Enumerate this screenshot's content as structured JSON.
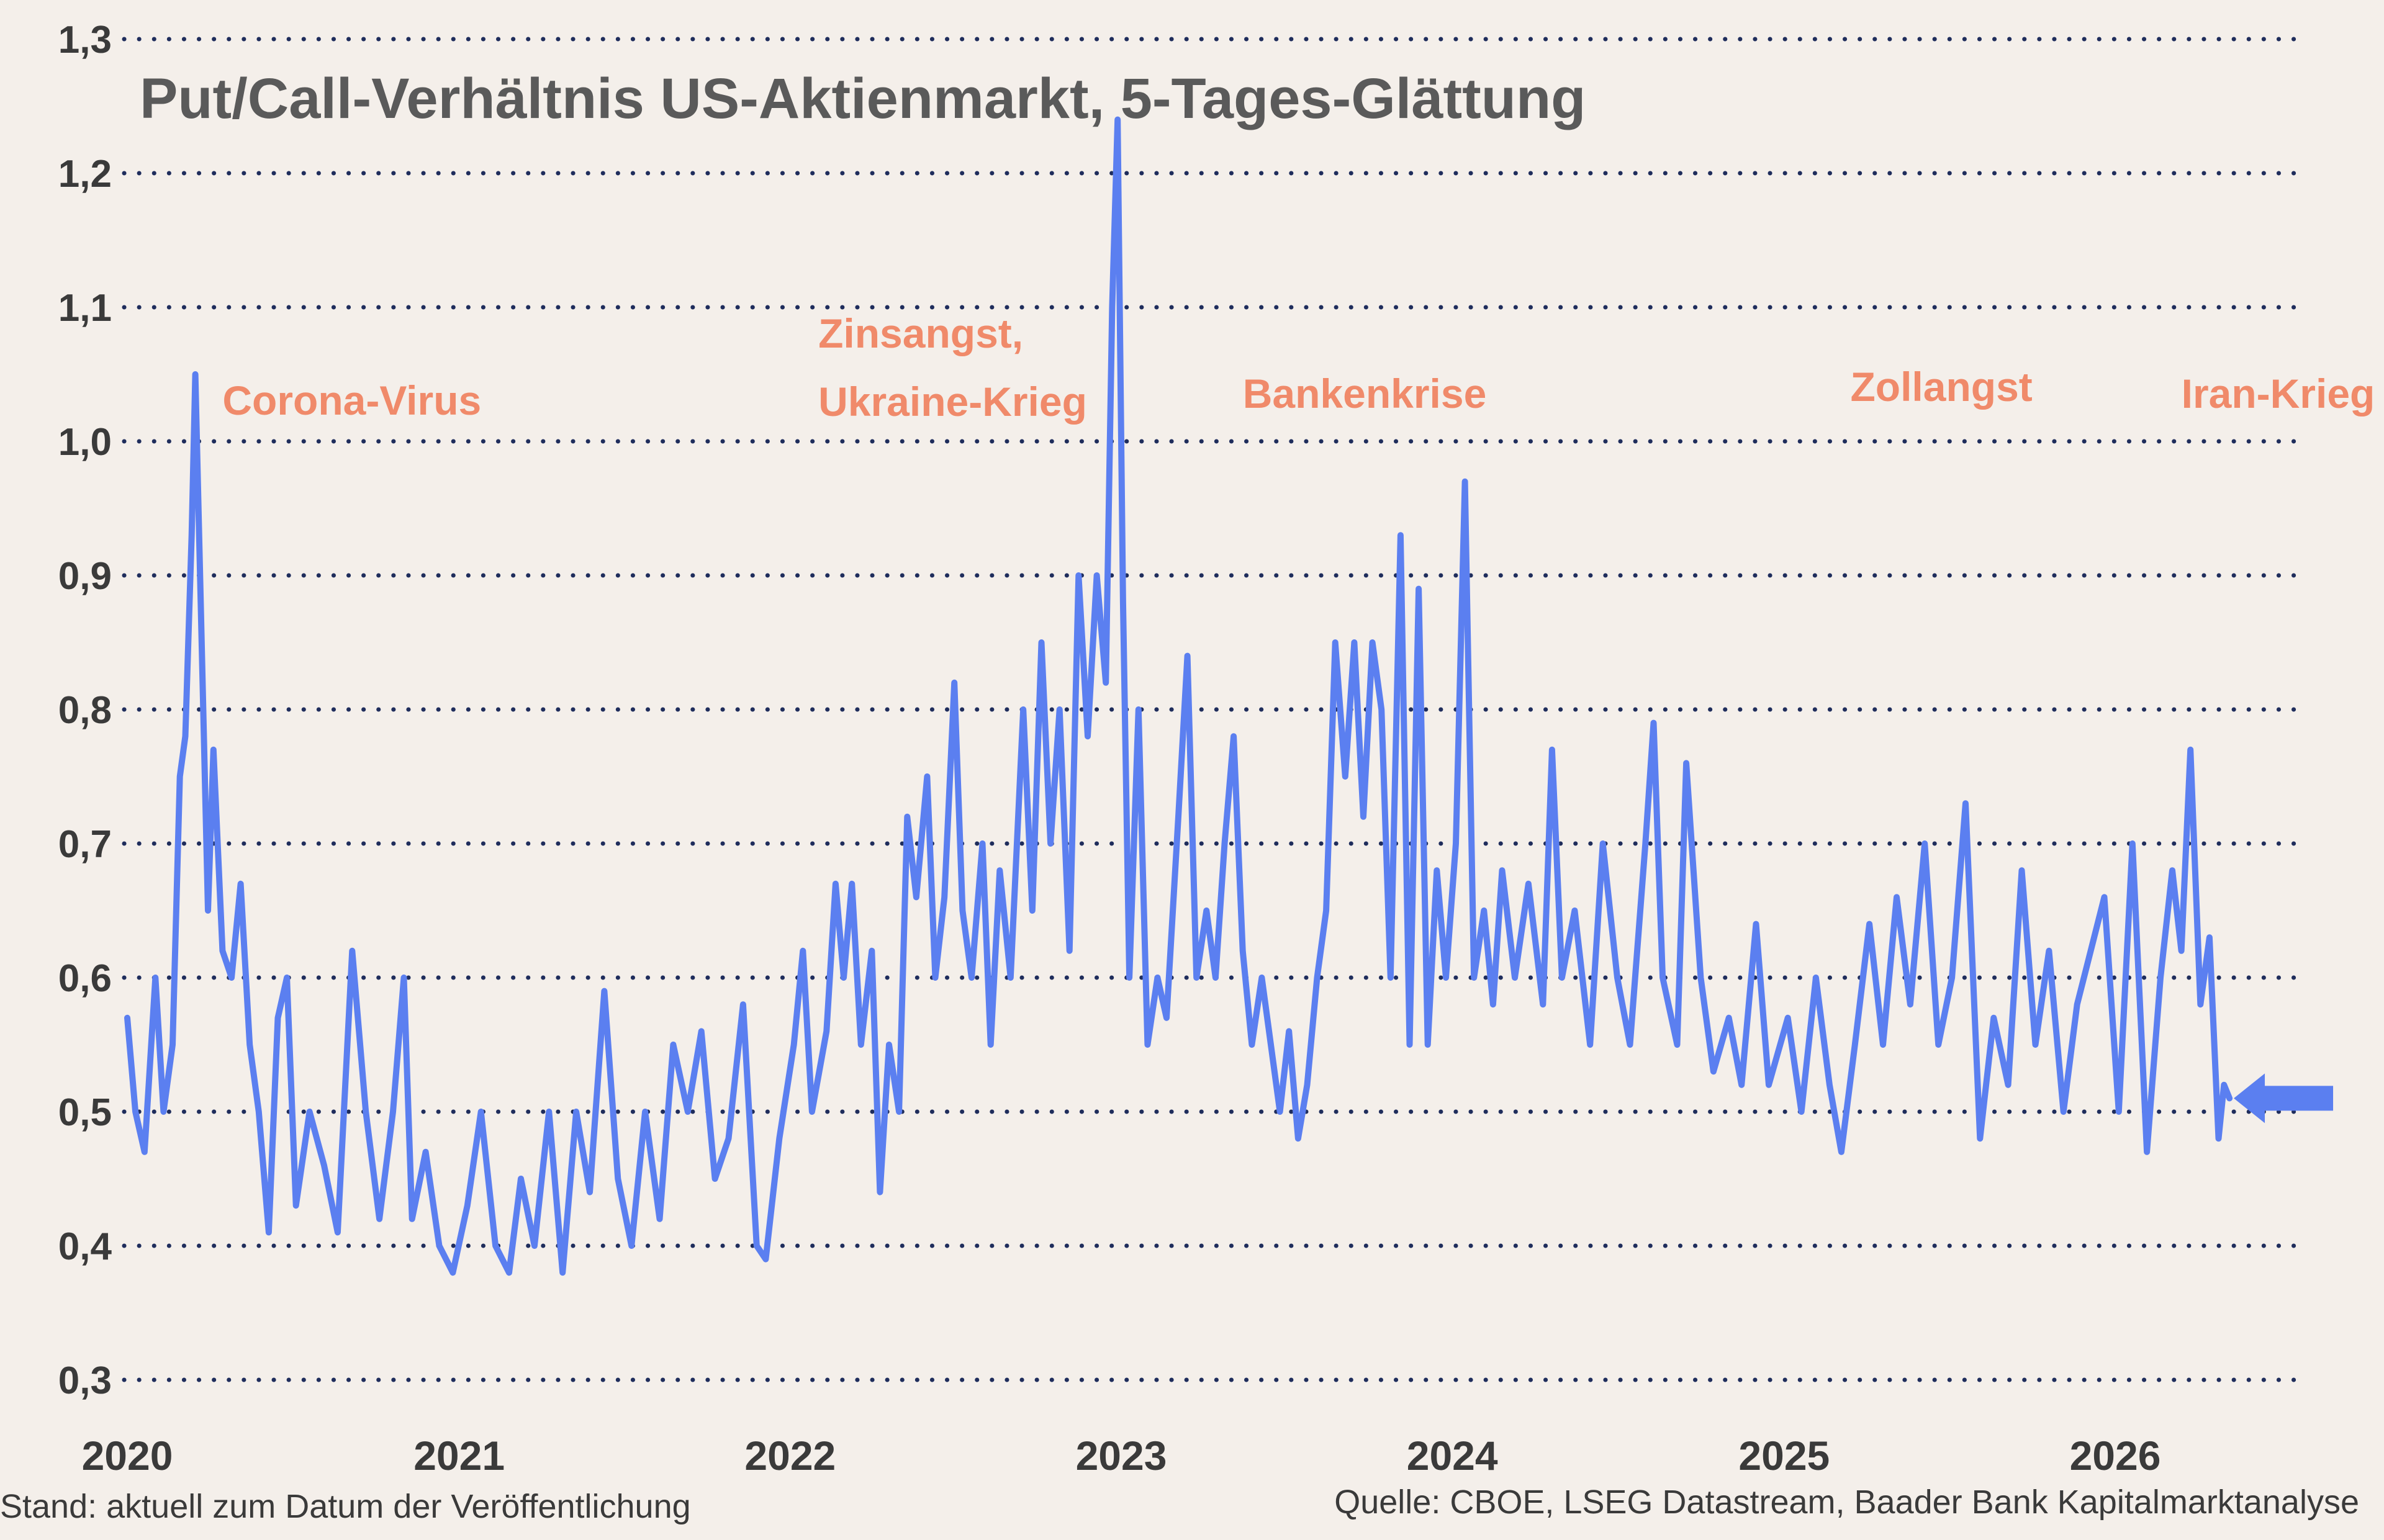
{
  "chart_data": {
    "type": "line",
    "title": "Put/Call-Verhältnis US-Aktienmarkt, 5-Tages-Glättung",
    "xlabel": "",
    "ylabel": "",
    "ylim": [
      0.3,
      1.3
    ],
    "xlim": [
      "2020-01-01",
      "2026-07-24"
    ],
    "grid": "horizontal dotted",
    "line_color": "#5b7ff0",
    "annotation_color": "#f08a6a",
    "y_ticks": [
      "1,3",
      "1,2",
      "1,1",
      "1,0",
      "0,9",
      "0,8",
      "0,7",
      "0,6",
      "0,5",
      "0,4",
      "0,3"
    ],
    "x_ticks": [
      "2020",
      "2021",
      "2022",
      "2023",
      "2024",
      "2025",
      "2026"
    ],
    "series": [
      {
        "values": [
          [
            "2020-01-01",
            0.57
          ],
          [
            "2020-01-10",
            0.5
          ],
          [
            "2020-01-20",
            0.47
          ],
          [
            "2020-02-01",
            0.6
          ],
          [
            "2020-02-10",
            0.5
          ],
          [
            "2020-02-20",
            0.55
          ],
          [
            "2020-02-28",
            0.75
          ],
          [
            "2020-03-05",
            0.78
          ],
          [
            "2020-03-12",
            0.93
          ],
          [
            "2020-03-16",
            1.05
          ],
          [
            "2020-03-22",
            0.88
          ],
          [
            "2020-03-30",
            0.65
          ],
          [
            "2020-04-05",
            0.77
          ],
          [
            "2020-04-15",
            0.62
          ],
          [
            "2020-04-25",
            0.6
          ],
          [
            "2020-05-05",
            0.67
          ],
          [
            "2020-05-15",
            0.55
          ],
          [
            "2020-05-25",
            0.5
          ],
          [
            "2020-06-05",
            0.41
          ],
          [
            "2020-06-15",
            0.57
          ],
          [
            "2020-06-25",
            0.6
          ],
          [
            "2020-07-05",
            0.43
          ],
          [
            "2020-07-20",
            0.5
          ],
          [
            "2020-08-05",
            0.46
          ],
          [
            "2020-08-20",
            0.41
          ],
          [
            "2020-09-05",
            0.62
          ],
          [
            "2020-09-20",
            0.5
          ],
          [
            "2020-10-05",
            0.42
          ],
          [
            "2020-10-20",
            0.5
          ],
          [
            "2020-11-01",
            0.6
          ],
          [
            "2020-11-10",
            0.42
          ],
          [
            "2020-11-25",
            0.47
          ],
          [
            "2020-12-10",
            0.4
          ],
          [
            "2020-12-25",
            0.38
          ],
          [
            "2021-01-10",
            0.43
          ],
          [
            "2021-01-25",
            0.5
          ],
          [
            "2021-02-10",
            0.4
          ],
          [
            "2021-02-25",
            0.38
          ],
          [
            "2021-03-10",
            0.45
          ],
          [
            "2021-03-25",
            0.4
          ],
          [
            "2021-04-10",
            0.5
          ],
          [
            "2021-04-25",
            0.38
          ],
          [
            "2021-05-10",
            0.5
          ],
          [
            "2021-05-25",
            0.44
          ],
          [
            "2021-06-10",
            0.59
          ],
          [
            "2021-06-25",
            0.45
          ],
          [
            "2021-07-10",
            0.4
          ],
          [
            "2021-07-25",
            0.5
          ],
          [
            "2021-08-10",
            0.42
          ],
          [
            "2021-08-25",
            0.55
          ],
          [
            "2021-09-10",
            0.5
          ],
          [
            "2021-09-25",
            0.56
          ],
          [
            "2021-10-10",
            0.45
          ],
          [
            "2021-10-25",
            0.48
          ],
          [
            "2021-11-10",
            0.58
          ],
          [
            "2021-11-25",
            0.4
          ],
          [
            "2021-12-05",
            0.39
          ],
          [
            "2021-12-20",
            0.48
          ],
          [
            "2022-01-05",
            0.55
          ],
          [
            "2022-01-15",
            0.62
          ],
          [
            "2022-01-25",
            0.5
          ],
          [
            "2022-02-10",
            0.56
          ],
          [
            "2022-02-20",
            0.67
          ],
          [
            "2022-03-01",
            0.6
          ],
          [
            "2022-03-10",
            0.67
          ],
          [
            "2022-03-20",
            0.55
          ],
          [
            "2022-04-01",
            0.62
          ],
          [
            "2022-04-10",
            0.44
          ],
          [
            "2022-04-20",
            0.55
          ],
          [
            "2022-05-01",
            0.5
          ],
          [
            "2022-05-10",
            0.72
          ],
          [
            "2022-05-20",
            0.66
          ],
          [
            "2022-06-01",
            0.75
          ],
          [
            "2022-06-10",
            0.6
          ],
          [
            "2022-06-20",
            0.66
          ],
          [
            "2022-07-01",
            0.82
          ],
          [
            "2022-07-10",
            0.65
          ],
          [
            "2022-07-20",
            0.6
          ],
          [
            "2022-08-01",
            0.7
          ],
          [
            "2022-08-10",
            0.55
          ],
          [
            "2022-08-20",
            0.68
          ],
          [
            "2022-09-01",
            0.6
          ],
          [
            "2022-09-15",
            0.8
          ],
          [
            "2022-09-25",
            0.65
          ],
          [
            "2022-10-05",
            0.85
          ],
          [
            "2022-10-15",
            0.7
          ],
          [
            "2022-10-25",
            0.8
          ],
          [
            "2022-11-05",
            0.62
          ],
          [
            "2022-11-15",
            0.9
          ],
          [
            "2022-11-25",
            0.78
          ],
          [
            "2022-12-05",
            0.9
          ],
          [
            "2022-12-15",
            0.82
          ],
          [
            "2022-12-22",
            1.1
          ],
          [
            "2022-12-28",
            1.24
          ],
          [
            "2023-01-03",
            0.88
          ],
          [
            "2023-01-10",
            0.6
          ],
          [
            "2023-01-20",
            0.8
          ],
          [
            "2023-01-30",
            0.55
          ],
          [
            "2023-02-10",
            0.6
          ],
          [
            "2023-02-20",
            0.57
          ],
          [
            "2023-03-05",
            0.72
          ],
          [
            "2023-03-15",
            0.84
          ],
          [
            "2023-03-25",
            0.6
          ],
          [
            "2023-04-05",
            0.65
          ],
          [
            "2023-04-15",
            0.6
          ],
          [
            "2023-04-25",
            0.7
          ],
          [
            "2023-05-05",
            0.78
          ],
          [
            "2023-05-15",
            0.62
          ],
          [
            "2023-05-25",
            0.55
          ],
          [
            "2023-06-05",
            0.6
          ],
          [
            "2023-06-15",
            0.55
          ],
          [
            "2023-06-25",
            0.5
          ],
          [
            "2023-07-05",
            0.56
          ],
          [
            "2023-07-15",
            0.48
          ],
          [
            "2023-07-25",
            0.52
          ],
          [
            "2023-08-05",
            0.6
          ],
          [
            "2023-08-15",
            0.65
          ],
          [
            "2023-08-25",
            0.85
          ],
          [
            "2023-09-05",
            0.75
          ],
          [
            "2023-09-15",
            0.85
          ],
          [
            "2023-09-25",
            0.72
          ],
          [
            "2023-10-05",
            0.85
          ],
          [
            "2023-10-15",
            0.8
          ],
          [
            "2023-10-25",
            0.6
          ],
          [
            "2023-11-05",
            0.93
          ],
          [
            "2023-11-15",
            0.55
          ],
          [
            "2023-11-25",
            0.89
          ],
          [
            "2023-12-05",
            0.55
          ],
          [
            "2023-12-15",
            0.68
          ],
          [
            "2023-12-25",
            0.6
          ],
          [
            "2024-01-05",
            0.7
          ],
          [
            "2024-01-15",
            0.97
          ],
          [
            "2024-01-25",
            0.6
          ],
          [
            "2024-02-05",
            0.65
          ],
          [
            "2024-02-15",
            0.58
          ],
          [
            "2024-02-25",
            0.68
          ],
          [
            "2024-03-10",
            0.6
          ],
          [
            "2024-03-25",
            0.67
          ],
          [
            "2024-04-10",
            0.58
          ],
          [
            "2024-04-20",
            0.77
          ],
          [
            "2024-05-01",
            0.6
          ],
          [
            "2024-05-15",
            0.65
          ],
          [
            "2024-06-01",
            0.55
          ],
          [
            "2024-06-15",
            0.7
          ],
          [
            "2024-07-01",
            0.6
          ],
          [
            "2024-07-15",
            0.55
          ],
          [
            "2024-08-01",
            0.7
          ],
          [
            "2024-08-10",
            0.79
          ],
          [
            "2024-08-20",
            0.6
          ],
          [
            "2024-09-05",
            0.55
          ],
          [
            "2024-09-15",
            0.76
          ],
          [
            "2024-10-01",
            0.6
          ],
          [
            "2024-10-15",
            0.53
          ],
          [
            "2024-11-01",
            0.57
          ],
          [
            "2024-11-15",
            0.52
          ],
          [
            "2024-12-01",
            0.64
          ],
          [
            "2024-12-15",
            0.52
          ],
          [
            "2025-01-05",
            0.57
          ],
          [
            "2025-01-20",
            0.5
          ],
          [
            "2025-02-05",
            0.6
          ],
          [
            "2025-02-20",
            0.52
          ],
          [
            "2025-03-05",
            0.47
          ],
          [
            "2025-03-20",
            0.55
          ],
          [
            "2025-04-05",
            0.64
          ],
          [
            "2025-04-20",
            0.55
          ],
          [
            "2025-05-05",
            0.66
          ],
          [
            "2025-05-20",
            0.58
          ],
          [
            "2025-06-05",
            0.7
          ],
          [
            "2025-06-20",
            0.55
          ],
          [
            "2025-07-05",
            0.6
          ],
          [
            "2025-07-20",
            0.73
          ],
          [
            "2025-08-05",
            0.48
          ],
          [
            "2025-08-20",
            0.57
          ],
          [
            "2025-09-05",
            0.52
          ],
          [
            "2025-09-20",
            0.68
          ],
          [
            "2025-10-05",
            0.55
          ],
          [
            "2025-10-20",
            0.62
          ],
          [
            "2025-11-05",
            0.5
          ],
          [
            "2025-11-20",
            0.58
          ],
          [
            "2025-12-05",
            0.62
          ],
          [
            "2025-12-20",
            0.66
          ],
          [
            "2026-01-05",
            0.5
          ],
          [
            "2026-01-20",
            0.7
          ],
          [
            "2026-02-05",
            0.47
          ],
          [
            "2026-02-20",
            0.6
          ],
          [
            "2026-03-05",
            0.68
          ],
          [
            "2026-03-15",
            0.62
          ],
          [
            "2026-03-25",
            0.77
          ],
          [
            "2026-04-05",
            0.58
          ],
          [
            "2026-04-15",
            0.63
          ],
          [
            "2026-04-25",
            0.48
          ],
          [
            "2026-05-01",
            0.52
          ],
          [
            "2026-05-07",
            0.51
          ]
        ]
      }
    ],
    "annotations": [
      {
        "lines": [
          "Corona-Virus"
        ],
        "x": "2020-04-15",
        "y": 1.02
      },
      {
        "lines": [
          "Zinsangst,",
          "Ukraine-Krieg"
        ],
        "x": "2022-02-01",
        "y": 1.07
      },
      {
        "lines": [
          "Bankenkrise"
        ],
        "x": "2023-05-15",
        "y": 1.025
      },
      {
        "lines": [
          "Zollangst"
        ],
        "x": "2025-03-15",
        "y": 1.03
      },
      {
        "lines": [
          "Iran-Krieg"
        ],
        "x": "2026-03-15",
        "y": 1.025
      }
    ],
    "current_marker": {
      "x": "2026-06-15",
      "y": 0.51
    }
  },
  "footer": {
    "left": "Stand: aktuell zum Datum der Veröffentlichung",
    "right": "Quelle: CBOE, LSEG Datastream, Baader Bank Kapitalmarktanalyse"
  }
}
